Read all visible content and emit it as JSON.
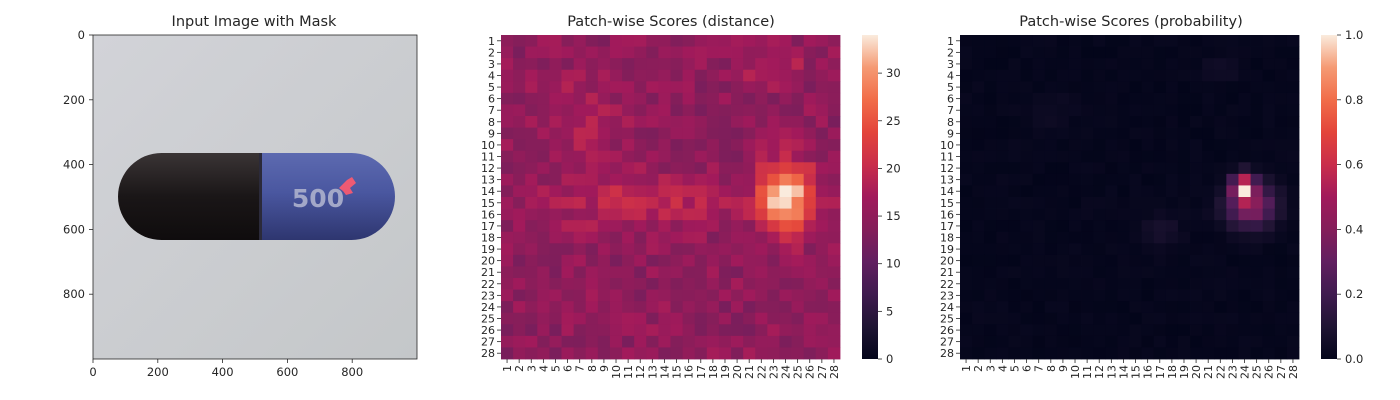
{
  "chart_data": [
    {
      "type": "image",
      "title": "Input Image with Mask",
      "x_ticks": [
        "0",
        "200",
        "400",
        "600",
        "800"
      ],
      "y_ticks": [
        "0",
        "200",
        "400",
        "600",
        "800"
      ],
      "xlim": [
        0,
        1000
      ],
      "ylim": [
        1000,
        0
      ],
      "image_text": "500",
      "colors": {
        "background": "#c9cbcf",
        "capsule_dark": "#1e1a1b",
        "capsule_blue": "#4a57a0",
        "mask": "#ff5a6e"
      }
    },
    {
      "type": "heatmap",
      "title": "Patch-wise Scores (distance)",
      "rows": [
        "1",
        "2",
        "3",
        "4",
        "5",
        "6",
        "7",
        "8",
        "9",
        "10",
        "11",
        "12",
        "13",
        "14",
        "15",
        "16",
        "17",
        "18",
        "19",
        "20",
        "21",
        "22",
        "23",
        "24",
        "25",
        "26",
        "27",
        "28"
      ],
      "cols": [
        "1",
        "2",
        "3",
        "4",
        "5",
        "6",
        "7",
        "8",
        "9",
        "10",
        "11",
        "12",
        "13",
        "14",
        "15",
        "16",
        "17",
        "18",
        "19",
        "20",
        "21",
        "22",
        "23",
        "24",
        "25",
        "26",
        "27",
        "28"
      ],
      "colorbar": {
        "min": 0,
        "max": 34,
        "ticks": [
          "0",
          "5",
          "10",
          "15",
          "20",
          "25",
          "30"
        ],
        "colormap": "rocket"
      },
      "baseline": 15,
      "blobs": [
        {
          "row": 14.5,
          "col": 24,
          "peak": 34,
          "sigma_r": 2.0,
          "sigma_c": 1.6
        },
        {
          "row": 15.0,
          "col": 12,
          "peak": 20,
          "sigma_r": 1.5,
          "sigma_c": 5.0
        },
        {
          "row": 8.0,
          "col": 7,
          "peak": 18,
          "sigma_r": 2.5,
          "sigma_c": 2.5
        },
        {
          "row": 3.5,
          "col": 23,
          "peak": 20,
          "sigma_r": 1.0,
          "sigma_c": 1.5
        }
      ],
      "noise_amplitude": 2.5
    },
    {
      "type": "heatmap",
      "title": "Patch-wise Scores (probability)",
      "rows": [
        "1",
        "2",
        "3",
        "4",
        "5",
        "6",
        "7",
        "8",
        "9",
        "10",
        "11",
        "12",
        "13",
        "14",
        "15",
        "16",
        "17",
        "18",
        "19",
        "20",
        "21",
        "22",
        "23",
        "24",
        "25",
        "26",
        "27",
        "28"
      ],
      "cols": [
        "1",
        "2",
        "3",
        "4",
        "5",
        "6",
        "7",
        "8",
        "9",
        "10",
        "11",
        "12",
        "13",
        "14",
        "15",
        "16",
        "17",
        "18",
        "19",
        "20",
        "21",
        "22",
        "23",
        "24",
        "25",
        "26",
        "27",
        "28"
      ],
      "colorbar": {
        "min": 0,
        "max": 1,
        "ticks": [
          "0.0",
          "0.2",
          "0.4",
          "0.6",
          "0.8",
          "1.0"
        ],
        "colormap": "rocket"
      },
      "baseline": 0.01,
      "blobs": [
        {
          "row": 14,
          "col": 24,
          "peak": 1.0,
          "sigma_r": 0.9,
          "sigma_c": 0.7
        },
        {
          "row": 15.2,
          "col": 24.5,
          "peak": 0.45,
          "sigma_r": 1.3,
          "sigma_c": 1.4
        },
        {
          "row": 17.5,
          "col": 17,
          "peak": 0.08,
          "sigma_r": 1.0,
          "sigma_c": 1.2
        },
        {
          "row": 3.5,
          "col": 22,
          "peak": 0.06,
          "sigma_r": 0.7,
          "sigma_c": 1.0
        },
        {
          "row": 7,
          "col": 8,
          "peak": 0.04,
          "sigma_r": 1.0,
          "sigma_c": 1.5
        }
      ],
      "noise_amplitude": 0.01
    }
  ]
}
